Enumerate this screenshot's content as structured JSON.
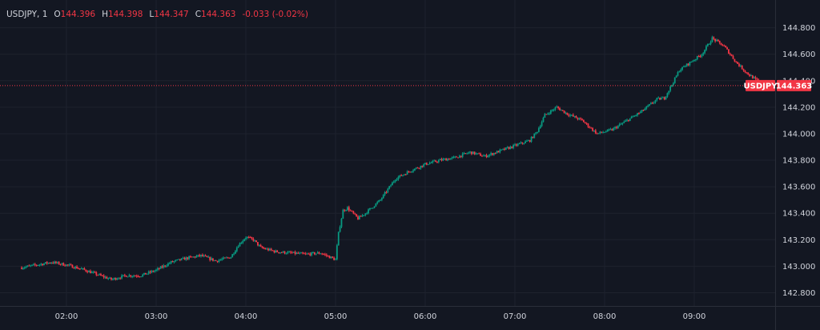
{
  "legend": {
    "symbol_interval": "USDJPY, 1",
    "open_label": "O",
    "open": "144.396",
    "high_label": "H",
    "high": "144.398",
    "low_label": "L",
    "low": "144.347",
    "close_label": "C",
    "close": "144.363",
    "change": "-0.033 (-0.02%)"
  },
  "price_tag": {
    "symbol": "USDJPY",
    "value": "144.363"
  },
  "colors": {
    "background": "#131722",
    "grid": "#1e222d",
    "up": "#089981",
    "down": "#f23645",
    "text": "#d1d4dc",
    "price_line": "#f23645"
  },
  "chart_data": {
    "type": "candlestick",
    "instrument": "USDJPY",
    "interval": "1",
    "last_price": 144.363,
    "x_ticks": [
      "02:00",
      "03:00",
      "04:00",
      "05:00",
      "06:00",
      "07:00",
      "08:00",
      "09:00"
    ],
    "y_ticks": [
      "142.800",
      "143.000",
      "143.200",
      "143.400",
      "143.600",
      "143.800",
      "144.000",
      "144.200",
      "144.400",
      "144.600",
      "144.800"
    ],
    "ylim": [
      142.7,
      144.84
    ],
    "grid": true,
    "start_time": "01:30",
    "end_time": "09:48",
    "close_path": [
      [
        "01:30",
        142.99
      ],
      [
        "01:40",
        143.01
      ],
      [
        "01:50",
        143.03
      ],
      [
        "02:00",
        143.01
      ],
      [
        "02:10",
        142.98
      ],
      [
        "02:20",
        142.94
      ],
      [
        "02:30",
        142.9
      ],
      [
        "02:40",
        142.93
      ],
      [
        "02:50",
        142.93
      ],
      [
        "03:00",
        142.97
      ],
      [
        "03:10",
        143.03
      ],
      [
        "03:20",
        143.06
      ],
      [
        "03:30",
        143.08
      ],
      [
        "03:40",
        143.04
      ],
      [
        "03:50",
        143.07
      ],
      [
        "03:55",
        143.16
      ],
      [
        "04:00",
        143.22
      ],
      [
        "04:05",
        143.2
      ],
      [
        "04:10",
        143.14
      ],
      [
        "04:20",
        143.11
      ],
      [
        "04:30",
        143.1
      ],
      [
        "04:40",
        143.09
      ],
      [
        "04:50",
        143.1
      ],
      [
        "05:00",
        143.05
      ],
      [
        "05:02",
        143.25
      ],
      [
        "05:05",
        143.42
      ],
      [
        "05:08",
        143.44
      ],
      [
        "05:15",
        143.36
      ],
      [
        "05:20",
        143.4
      ],
      [
        "05:30",
        143.5
      ],
      [
        "05:40",
        143.66
      ],
      [
        "05:50",
        143.72
      ],
      [
        "06:00",
        143.77
      ],
      [
        "06:10",
        143.8
      ],
      [
        "06:20",
        143.82
      ],
      [
        "06:30",
        143.86
      ],
      [
        "06:40",
        143.83
      ],
      [
        "06:50",
        143.87
      ],
      [
        "07:00",
        143.91
      ],
      [
        "07:10",
        143.95
      ],
      [
        "07:15",
        144.02
      ],
      [
        "07:20",
        144.14
      ],
      [
        "07:28",
        144.2
      ],
      [
        "07:35",
        144.15
      ],
      [
        "07:45",
        144.1
      ],
      [
        "07:55",
        144.0
      ],
      [
        "08:05",
        144.03
      ],
      [
        "08:15",
        144.1
      ],
      [
        "08:25",
        144.17
      ],
      [
        "08:35",
        144.26
      ],
      [
        "08:40",
        144.27
      ],
      [
        "08:45",
        144.37
      ],
      [
        "08:50",
        144.48
      ],
      [
        "08:55",
        144.52
      ],
      [
        "09:05",
        144.6
      ],
      [
        "09:12",
        144.72
      ],
      [
        "09:20",
        144.66
      ],
      [
        "09:28",
        144.54
      ],
      [
        "09:35",
        144.46
      ],
      [
        "09:42",
        144.4
      ],
      [
        "09:48",
        144.363
      ]
    ]
  }
}
